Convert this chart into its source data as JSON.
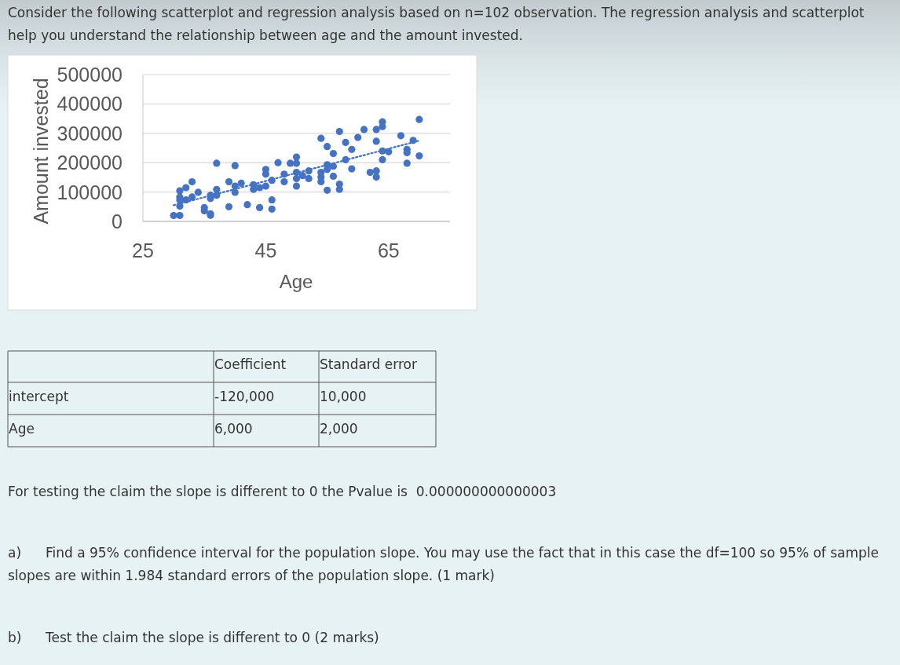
{
  "chart_data": {
    "type": "scatter",
    "title": "Consider the following scatterplot and regression analysis based on n=102 observation. The regression analysis and scatterplot help you understand the relationship between age and the amount invested.",
    "xlabel": "Age",
    "ylabel": "Amount invested",
    "xlim": [
      25,
      75
    ],
    "xticks": [
      25,
      45,
      65
    ],
    "ylim": [
      0,
      500000
    ],
    "yticks": [
      0,
      100000,
      200000,
      300000,
      400000,
      500000
    ],
    "grid": "y",
    "series": [
      {
        "type": "scatter",
        "color": "#4472c4",
        "marker": "circle",
        "x": [
          30,
          31,
          31,
          31,
          31,
          31,
          32,
          32,
          33,
          33,
          34,
          35,
          35,
          36,
          36,
          36,
          36,
          37,
          37,
          37,
          39,
          39,
          40,
          40,
          40,
          41,
          42,
          43,
          43,
          44,
          44,
          45,
          45,
          45,
          46,
          46,
          46,
          47,
          48,
          48,
          49,
          50,
          50,
          50,
          50,
          50,
          51,
          52,
          52,
          54,
          54,
          54,
          54,
          55,
          55,
          55,
          55,
          56,
          56,
          56,
          57,
          57,
          57,
          58,
          58,
          59,
          59,
          60,
          61,
          62,
          63,
          63,
          63,
          63,
          64,
          64,
          64,
          64,
          65,
          67,
          68,
          68,
          68,
          69,
          70,
          70
        ],
        "values": [
          20000,
          20000,
          52000,
          104000,
          83000,
          73000,
          115000,
          73000,
          135000,
          83000,
          99000,
          47000,
          36000,
          26000,
          21000,
          78000,
          89000,
          198000,
          109000,
          89000,
          50000,
          135000,
          190000,
          120000,
          99000,
          130000,
          57000,
          109000,
          125000,
          47000,
          115000,
          120000,
          177000,
          161000,
          73000,
          42000,
          140000,
          200000,
          161000,
          135000,
          198000,
          219000,
          198000,
          167000,
          146000,
          120000,
          156000,
          172000,
          146000,
          283000,
          167000,
          135000,
          151000,
          255000,
          193000,
          177000,
          106000,
          231000,
          188000,
          154000,
          306000,
          127000,
          109000,
          269000,
          210000,
          245000,
          179000,
          286000,
          313000,
          167000,
          313000,
          273000,
          172000,
          151000,
          339000,
          323000,
          240000,
          210000,
          237000,
          292000,
          245000,
          234000,
          198000,
          276000,
          347000,
          223000
        ]
      },
      {
        "type": "line",
        "color": "#4472c4",
        "line_style": "dotted",
        "x": [
          30,
          70
        ],
        "values": [
          55000,
          275000
        ]
      }
    ],
    "annotations": [
      "Coefficient",
      "Standard error",
      "intercept",
      "-120,000",
      "10,000",
      "Age",
      "6,000",
      "2,000",
      "For testing the claim the slope is different to 0 the Pvalue is  0.000000000000003",
      "a)",
      "Find a 95% confidence interval for the population slope. You may use the fact that in this case the df=100 so 95% of sample slopes are within 1.984 standard errors of the population slope. (1 mark)",
      "b)",
      "Test the claim the slope is different to 0 (2 marks)"
    ]
  }
}
